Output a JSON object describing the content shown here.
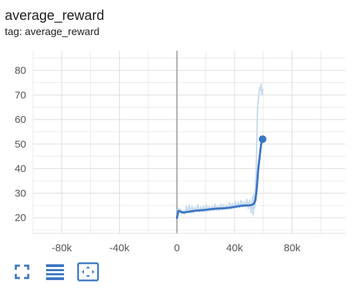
{
  "header": {
    "title": "average_reward",
    "tag": "tag: average_reward"
  },
  "toolbar": {
    "icons": [
      "fullscreen-icon",
      "lines-icon",
      "fit-domain-icon"
    ]
  },
  "colors": {
    "line": "#3a76c2",
    "line_raw": "#c9dbef",
    "grid": "#dcdcdc",
    "zero_axis": "#a8a8a8",
    "icon": "#3a76c2"
  },
  "chart_data": {
    "type": "line",
    "title": "average_reward",
    "xlabel": "",
    "ylabel": "",
    "xlim": [
      -100000,
      117000
    ],
    "ylim": [
      13.6,
      88
    ],
    "x_ticks": [
      -80000,
      -40000,
      0,
      40000,
      80000
    ],
    "x_tick_labels": [
      "-80k",
      "-40k",
      "0",
      "40k",
      "80k"
    ],
    "y_ticks": [
      20,
      30,
      40,
      50,
      60,
      70,
      80
    ],
    "y_tick_labels": [
      "20",
      "30",
      "40",
      "50",
      "60",
      "70",
      "80"
    ],
    "grid": true,
    "legend": "none",
    "series": [
      {
        "kind": "smoothed",
        "x": [
          0,
          1000,
          2000,
          4000,
          8000,
          12000,
          16000,
          20000,
          24000,
          28000,
          32000,
          36000,
          40000,
          44000,
          48000,
          50000,
          52000,
          53500,
          54500,
          55500,
          56500,
          57500,
          58500,
          59500
        ],
        "y": [
          19.9,
          22.8,
          22.6,
          22.1,
          22.4,
          22.8,
          23.0,
          23.2,
          23.5,
          23.7,
          23.8,
          24.0,
          24.4,
          24.8,
          25.0,
          25.0,
          25.2,
          25.7,
          27.0,
          32.0,
          40.0,
          45.0,
          50.0,
          52.0
        ]
      },
      {
        "kind": "raw",
        "x": [
          0,
          800,
          1600,
          2500,
          3500,
          4500,
          5500,
          6500,
          7500,
          8500,
          9500,
          10500,
          11500,
          12500,
          13500,
          14500,
          15500,
          16500,
          17500,
          18500,
          19500,
          20500,
          21500,
          22500,
          23500,
          24500,
          25500,
          26500,
          27500,
          28500,
          29500,
          30500,
          31500,
          32500,
          33500,
          34500,
          35500,
          36500,
          37500,
          38500,
          39500,
          40500,
          41500,
          42500,
          43500,
          44500,
          45500,
          46500,
          47500,
          48500,
          49500,
          50500,
          51500,
          52500,
          53000,
          53500,
          54000,
          54500,
          55000,
          55500,
          56000,
          56500,
          57000,
          57500,
          58000,
          58500,
          59000,
          59500
        ],
        "y": [
          19.5,
          24.0,
          21.8,
          23.6,
          21.6,
          22.9,
          21.4,
          24.5,
          22.1,
          25.0,
          22.0,
          24.6,
          21.9,
          24.2,
          22.5,
          25.2,
          22.3,
          24.3,
          22.4,
          24.8,
          22.6,
          25.1,
          22.7,
          24.5,
          22.8,
          24.7,
          22.9,
          25.4,
          23.1,
          24.6,
          23.0,
          25.6,
          23.2,
          25.3,
          23.4,
          25.1,
          23.5,
          26.0,
          23.6,
          25.7,
          23.8,
          26.5,
          24.0,
          26.3,
          24.2,
          27.0,
          24.4,
          26.4,
          24.6,
          27.5,
          23.8,
          27.2,
          22.0,
          28.5,
          21.2,
          29.5,
          24.0,
          33.0,
          38.0,
          52.0,
          65.0,
          68.0,
          71.0,
          73.0,
          72.0,
          74.5,
          70.0,
          72.5
        ]
      }
    ],
    "last_point": {
      "x": 59500,
      "y": 52.0
    }
  }
}
